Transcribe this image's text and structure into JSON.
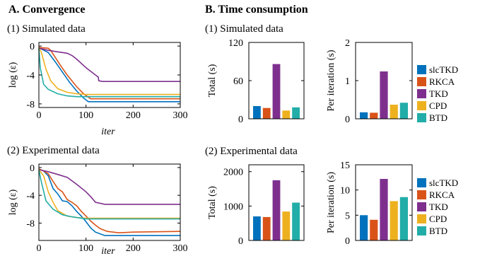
{
  "section_a": "A. Convergence",
  "section_b": "B. Time consumption",
  "colors": {
    "slcTKD": "#0072BD",
    "RKCA": "#D95319",
    "TKD": "#7E2F8E",
    "CPD": "#EDB120",
    "BTD": "#22ADA8"
  },
  "legend": [
    "slcTKD",
    "RKCA",
    "TKD",
    "CPD",
    "BTD"
  ],
  "chart_data": [
    {
      "id": "conv-sim",
      "type": "line",
      "title": "(1) Simulated data",
      "xlabel": "iter",
      "ylabel": "log (ε)",
      "xlim": [
        0,
        300
      ],
      "ylim": [
        -8.5,
        0.5
      ],
      "xticks": [
        0,
        100,
        200,
        300
      ],
      "yticks": [
        0,
        -4,
        -8
      ],
      "series": [
        {
          "name": "slcTKD",
          "x": [
            0,
            5,
            20,
            35,
            50,
            65,
            80,
            95,
            105,
            300
          ],
          "y": [
            -0.3,
            -0.4,
            -0.9,
            -2.2,
            -3.6,
            -5.0,
            -6.2,
            -7.2,
            -7.7,
            -7.7
          ]
        },
        {
          "name": "RKCA",
          "x": [
            0,
            20,
            25,
            45,
            60,
            80,
            95,
            110,
            300
          ],
          "y": [
            -0.2,
            -0.3,
            -0.6,
            -2.6,
            -4.0,
            -5.6,
            -6.6,
            -7.3,
            -7.3
          ]
        },
        {
          "name": "TKD",
          "x": [
            0,
            20,
            40,
            60,
            70,
            80,
            100,
            120,
            126,
            127,
            135,
            300
          ],
          "y": [
            -0.3,
            -0.6,
            -0.8,
            -1.0,
            -1.3,
            -1.8,
            -3.0,
            -4.0,
            -4.3,
            -4.8,
            -4.9,
            -4.9
          ]
        },
        {
          "name": "CPD",
          "x": [
            0,
            5,
            15,
            25,
            40,
            60,
            80,
            100,
            300
          ],
          "y": [
            -0.3,
            -0.8,
            -3.2,
            -4.8,
            -5.9,
            -6.4,
            -6.6,
            -6.7,
            -6.7
          ]
        },
        {
          "name": "BTD",
          "x": [
            0,
            3,
            10,
            20,
            40,
            60,
            80,
            100,
            300
          ],
          "y": [
            -0.3,
            -3.0,
            -5.3,
            -6.0,
            -6.6,
            -6.9,
            -7.0,
            -7.0,
            -7.0
          ]
        }
      ]
    },
    {
      "id": "conv-exp",
      "type": "line",
      "title": "(2) Experimental data",
      "xlabel": "iter",
      "ylabel": "log (ε)",
      "xlim": [
        0,
        300
      ],
      "ylim": [
        -10.5,
        0.5
      ],
      "xticks": [
        0,
        100,
        200,
        300
      ],
      "yticks": [
        0,
        -4,
        -8
      ],
      "series": [
        {
          "name": "slcTKD",
          "x": [
            0,
            10,
            20,
            30,
            40,
            50,
            60,
            70,
            80,
            90,
            100,
            110,
            120,
            140,
            300
          ],
          "y": [
            -0.2,
            -0.5,
            -1.2,
            -3.0,
            -3.8,
            -4.8,
            -4.9,
            -5.5,
            -6.3,
            -7.0,
            -7.8,
            -8.7,
            -9.3,
            -9.8,
            -9.8
          ]
        },
        {
          "name": "RKCA",
          "x": [
            0,
            10,
            20,
            30,
            40,
            50,
            60,
            70,
            80,
            90,
            100,
            110,
            120,
            130,
            145,
            170,
            200,
            300
          ],
          "y": [
            -0.2,
            -0.5,
            -0.9,
            -2.0,
            -3.0,
            -3.5,
            -4.6,
            -5.0,
            -5.5,
            -6.3,
            -7.0,
            -7.7,
            -8.3,
            -8.8,
            -9.2,
            -9.4,
            -9.3,
            -9.2
          ]
        },
        {
          "name": "TKD",
          "x": [
            0,
            20,
            40,
            60,
            80,
            100,
            110,
            120,
            140,
            300
          ],
          "y": [
            -0.3,
            -0.6,
            -1.0,
            -1.4,
            -2.4,
            -3.5,
            -4.2,
            -5.0,
            -5.3,
            -5.3
          ]
        },
        {
          "name": "CPD",
          "x": [
            0,
            10,
            20,
            30,
            40,
            60,
            80,
            100,
            300
          ],
          "y": [
            -0.3,
            -1.2,
            -3.5,
            -5.0,
            -6.2,
            -7.0,
            -7.2,
            -7.3,
            -7.3
          ]
        },
        {
          "name": "BTD",
          "x": [
            0,
            5,
            15,
            30,
            50,
            70,
            100,
            300
          ],
          "y": [
            -0.3,
            -2.0,
            -4.8,
            -6.0,
            -6.8,
            -7.1,
            -7.4,
            -7.4
          ]
        }
      ]
    },
    {
      "id": "total-sim",
      "type": "bar",
      "title": "(1) Simulated data",
      "ylabel": "Total (s)",
      "categories": [
        "slcTKD",
        "RKCA",
        "TKD",
        "CPD",
        "BTD"
      ],
      "values": [
        20,
        17,
        86,
        13,
        18
      ],
      "ylim": [
        0,
        120
      ],
      "yticks": [
        0,
        60,
        120
      ]
    },
    {
      "id": "iter-sim",
      "type": "bar",
      "ylabel": "Per iteration (s)",
      "categories": [
        "slcTKD",
        "RKCA",
        "TKD",
        "CPD",
        "BTD"
      ],
      "values": [
        0.17,
        0.16,
        1.24,
        0.37,
        0.42
      ],
      "ylim": [
        0,
        2
      ],
      "yticks": [
        0,
        1,
        2
      ]
    },
    {
      "id": "total-exp",
      "type": "bar",
      "title": "(2) Experimental data",
      "ylabel": "Total (s)",
      "categories": [
        "slcTKD",
        "RKCA",
        "TKD",
        "CPD",
        "BTD"
      ],
      "values": [
        700,
        680,
        1750,
        840,
        1100
      ],
      "ylim": [
        0,
        2200
      ],
      "yticks": [
        0,
        1000,
        2000
      ]
    },
    {
      "id": "iter-exp",
      "type": "bar",
      "ylabel": "Per iteration (s)",
      "categories": [
        "slcTKD",
        "RKCA",
        "TKD",
        "CPD",
        "BTD"
      ],
      "values": [
        5.0,
        4.1,
        12.2,
        7.8,
        8.6
      ],
      "ylim": [
        0,
        15
      ],
      "yticks": [
        0,
        5,
        10,
        15
      ]
    }
  ]
}
